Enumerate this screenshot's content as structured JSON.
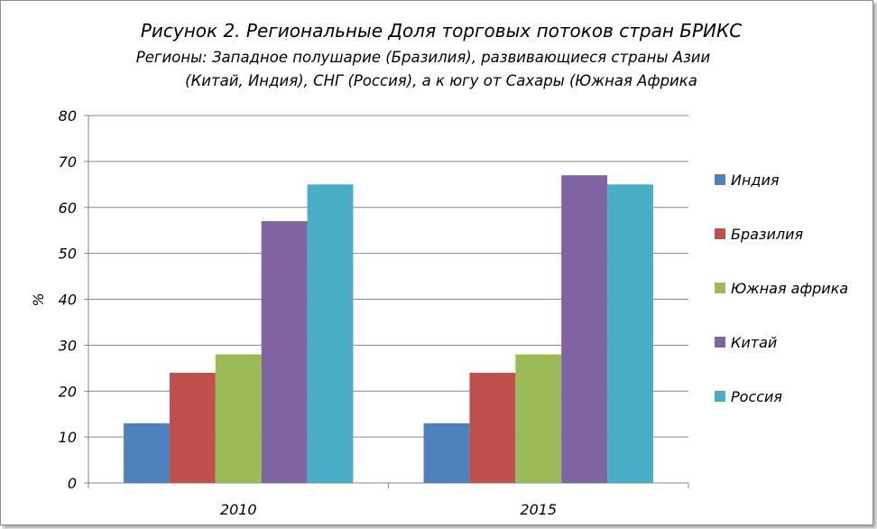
{
  "chart_data": {
    "type": "bar",
    "title": "Рисунок 2. Региональные Доля торговых потоков стран БРИКС",
    "subtitle_lines": [
      "Регионы: Западное полушарие  (Бразилия), развивающиеся страны Азии",
      "(Китай, Индия), СНГ (Россия), а к югу от Сахары (Южная Африка"
    ],
    "xlabel": "",
    "ylabel": "%",
    "ylim": [
      0,
      80
    ],
    "yticks": [
      0,
      10,
      20,
      30,
      40,
      50,
      60,
      70,
      80
    ],
    "grid": true,
    "legend_position": "right",
    "categories": [
      "2010",
      "2015"
    ],
    "series": [
      {
        "name": "Индия",
        "color": "#4f81bd",
        "values": [
          13,
          13
        ]
      },
      {
        "name": "Бразилия",
        "color": "#c0504d",
        "values": [
          24,
          24
        ]
      },
      {
        "name": "Южная африка",
        "color": "#9bbb59",
        "values": [
          28,
          28
        ]
      },
      {
        "name": "Китай",
        "color": "#8064a2",
        "values": [
          57,
          67
        ]
      },
      {
        "name": "Россия",
        "color": "#4bacc6",
        "values": [
          65,
          65
        ]
      }
    ]
  }
}
